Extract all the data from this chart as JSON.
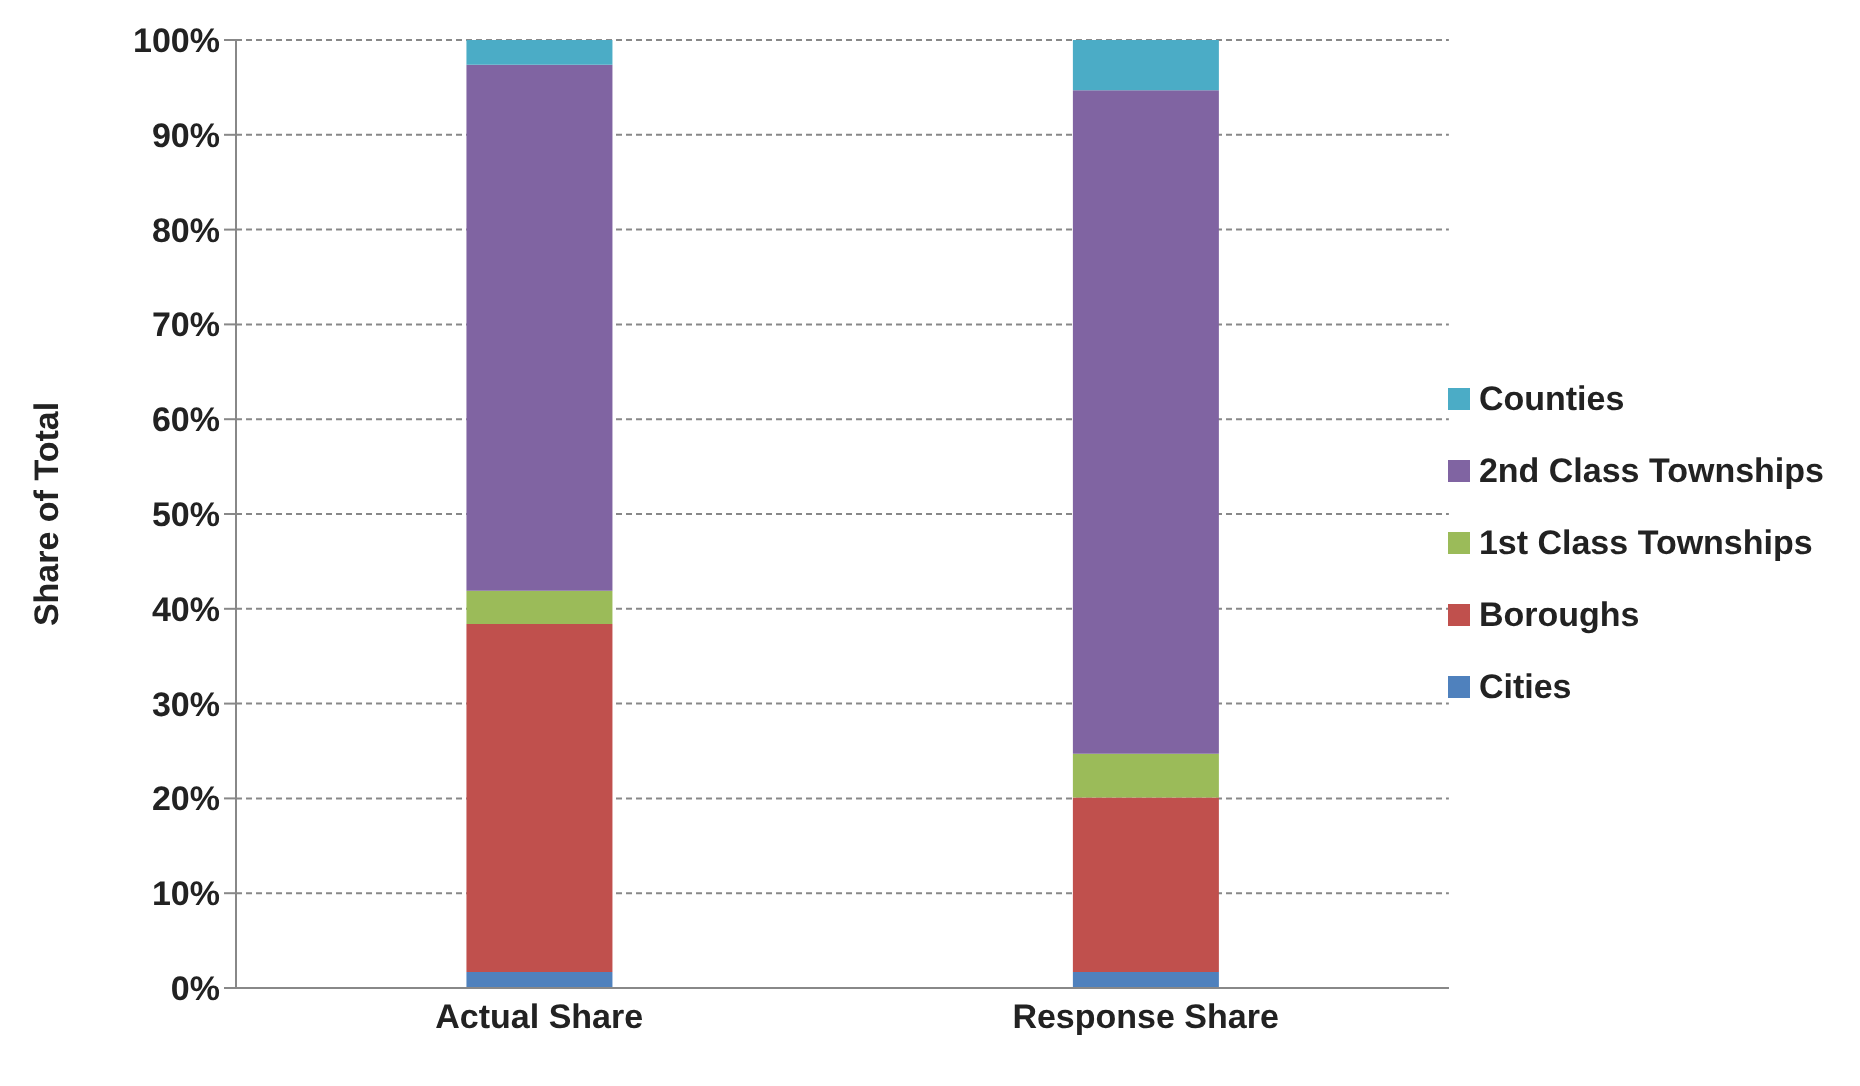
{
  "chart_data": {
    "type": "bar",
    "stacked": true,
    "ylabel": "Share of Total",
    "categories": [
      "Actual Share",
      "Response Share"
    ],
    "series": [
      {
        "name": "Cities",
        "color": "#4f81bd",
        "values": [
          1.7,
          1.7
        ]
      },
      {
        "name": "Boroughs",
        "color": "#c0504d",
        "values": [
          36.7,
          18.4
        ]
      },
      {
        "name": "1st Class Townships",
        "color": "#9bbb59",
        "values": [
          3.5,
          4.6
        ]
      },
      {
        "name": "2nd Class Townships",
        "color": "#8064a2",
        "values": [
          55.5,
          70.0
        ]
      },
      {
        "name": "Counties",
        "color": "#4bacc6",
        "values": [
          2.6,
          5.3
        ]
      }
    ],
    "ylim": [
      0,
      100
    ],
    "yticks": [
      {
        "value": 0,
        "label": "0%"
      },
      {
        "value": 10,
        "label": "10%"
      },
      {
        "value": 20,
        "label": "20%"
      },
      {
        "value": 30,
        "label": "30%"
      },
      {
        "value": 40,
        "label": "40%"
      },
      {
        "value": 50,
        "label": "50%"
      },
      {
        "value": 60,
        "label": "60%"
      },
      {
        "value": 70,
        "label": "70%"
      },
      {
        "value": 80,
        "label": "80%"
      },
      {
        "value": 90,
        "label": "90%"
      },
      {
        "value": 100,
        "label": "100%"
      }
    ],
    "grid": "y",
    "legend": "right"
  }
}
